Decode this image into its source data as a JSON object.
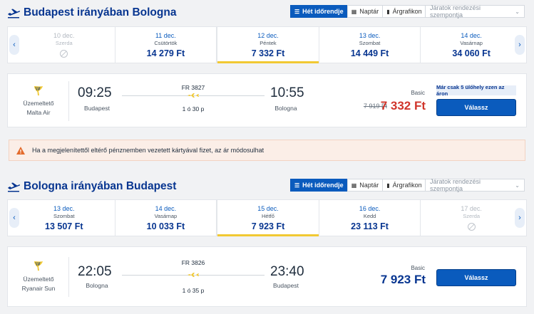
{
  "tabs": {
    "week": "Hét időrendje",
    "calendar": "Naptár",
    "chart": "Árgrafikon"
  },
  "sort_placeholder": "Járatok rendezési szempontja",
  "colors": {
    "brand": "#073590",
    "accent": "#0a5bbd",
    "sale_price": "#d0352b",
    "highlight": "#f1c933"
  },
  "outbound": {
    "title": "Budapest irányában Bologna",
    "days": [
      {
        "date": "10 dec.",
        "day": "Szerda",
        "price": "",
        "state": "disabled"
      },
      {
        "date": "11 dec.",
        "day": "Csütörtök",
        "price": "14 279 Ft",
        "state": "normal"
      },
      {
        "date": "12 dec.",
        "day": "Péntek",
        "price": "7 332 Ft",
        "state": "selected"
      },
      {
        "date": "13 dec.",
        "day": "Szombat",
        "price": "14 449 Ft",
        "state": "normal"
      },
      {
        "date": "14 dec.",
        "day": "Vasárnap",
        "price": "34 060 Ft",
        "state": "normal"
      }
    ],
    "flight": {
      "operator_label": "Üzemeltető",
      "operator": "Malta Air",
      "dep_time": "09:25",
      "dep_city": "Budapest",
      "flight_no": "FR 3827",
      "duration": "1 ó 30 p",
      "arr_time": "10:55",
      "arr_city": "Bologna",
      "fare": "Basic",
      "old_price": "7 919 Ft",
      "price": "7 332 Ft",
      "seats_note": "Már csak 5 ülőhely ezen az áron",
      "select": "Válassz"
    }
  },
  "warning": "Ha a megjelenítettől eltérő pénznemben vezetett kártyával fizet, az ár módosulhat",
  "inbound": {
    "title": "Bologna irányában Budapest",
    "days": [
      {
        "date": "13 dec.",
        "day": "Szombat",
        "price": "13 507 Ft",
        "state": "normal"
      },
      {
        "date": "14 dec.",
        "day": "Vasárnap",
        "price": "10 033 Ft",
        "state": "normal"
      },
      {
        "date": "15 dec.",
        "day": "Hétfő",
        "price": "7 923 Ft",
        "state": "selected"
      },
      {
        "date": "16 dec.",
        "day": "Kedd",
        "price": "23 113 Ft",
        "state": "normal"
      },
      {
        "date": "17 dec.",
        "day": "Szerda",
        "price": "",
        "state": "disabled"
      }
    ],
    "flight": {
      "operator_label": "Üzemeltető",
      "operator": "Ryanair Sun",
      "dep_time": "22:05",
      "dep_city": "Bologna",
      "flight_no": "FR 3826",
      "duration": "1 ó 35 p",
      "arr_time": "23:40",
      "arr_city": "Budapest",
      "fare": "Basic",
      "price": "7 923 Ft",
      "select": "Válassz"
    }
  }
}
